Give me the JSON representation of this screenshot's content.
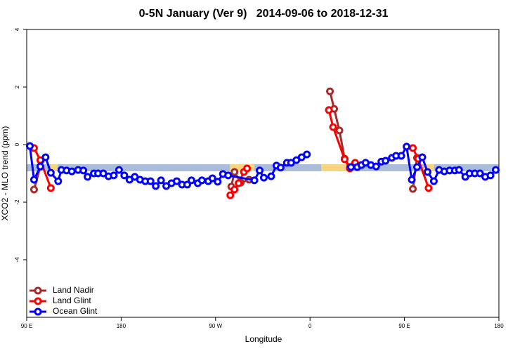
{
  "chart_data": {
    "type": "line",
    "title": "0-5N January (Ver 9)   2014-09-06 to 2018-12-31",
    "x_label": "Longitude",
    "y_label": "XCO2 - MLO trend (ppm)",
    "xlim": [
      90,
      540
    ],
    "ylim": [
      -6,
      4
    ],
    "xticks": [
      {
        "value": 90,
        "label": "90 E"
      },
      180,
      {
        "value": 270,
        "label": "90 W"
      },
      {
        "value": 360,
        "label": "0"
      },
      {
        "value": 450,
        "label": "90 E"
      },
      {
        "value": 540,
        "label": "180"
      }
    ],
    "yticks": [
      4,
      2,
      0,
      -2,
      -4
    ],
    "legend": "bottom-left",
    "series": [
      {
        "name": "Land Nadir",
        "color": "#a52a2a",
        "x": [
          97,
          103,
          null,
          285,
          288,
          294,
          302,
          null,
          379,
          383,
          388,
          393,
          398,
          null,
          458,
          462
        ],
        "values": [
          -1.56,
          -0.76,
          null,
          -1.46,
          -0.95,
          -1.32,
          -1.22,
          null,
          1.85,
          1.24,
          0.49,
          -0.49,
          -0.78,
          null,
          -1.54,
          -0.46
        ]
      },
      {
        "name": "Land Glint",
        "color": "#ff0000",
        "x": [
          97,
          103,
          113,
          null,
          284,
          288,
          292,
          297,
          300,
          null,
          378,
          382,
          393,
          398,
          403,
          null,
          458,
          463,
          473
        ],
        "values": [
          -0.12,
          -0.54,
          -1.51,
          null,
          -1.76,
          -1.56,
          -1.34,
          -0.95,
          -0.83,
          null,
          1.2,
          0.61,
          -0.51,
          -0.83,
          -0.63,
          null,
          -0.12,
          -0.49,
          -1.51
        ]
      },
      {
        "name": "Ocean Glint",
        "color": "#0000ff",
        "x": [
          93,
          97,
          103,
          108,
          113,
          120,
          123,
          128,
          133,
          139,
          144,
          148,
          154,
          158,
          163,
          168,
          173,
          178,
          183,
          188,
          193,
          198,
          203,
          208,
          213,
          218,
          223,
          228,
          233,
          238,
          243,
          247,
          253,
          257,
          263,
          267,
          272,
          277,
          282,
          307,
          312,
          316,
          323,
          328,
          332,
          338,
          342,
          347,
          352,
          357,
          null,
          399,
          405,
          409,
          413,
          418,
          423,
          428,
          432,
          438,
          442,
          447,
          452,
          457,
          462,
          467,
          472,
          478,
          483,
          488,
          493,
          498,
          502,
          508,
          512,
          517,
          522,
          527,
          532,
          537
        ],
        "values": [
          -0.05,
          -1.22,
          -0.76,
          -0.44,
          -0.98,
          -1.27,
          -0.88,
          -0.9,
          -0.93,
          -0.88,
          -0.9,
          -1.12,
          -1.0,
          -1.0,
          -1.0,
          -1.1,
          -1.07,
          -0.88,
          -1.07,
          -1.22,
          -1.12,
          -1.22,
          -1.27,
          -1.27,
          -1.44,
          -1.24,
          -1.44,
          -1.34,
          -1.27,
          -1.39,
          -1.39,
          -1.24,
          -1.34,
          -1.24,
          -1.27,
          -1.17,
          -1.29,
          -1.02,
          -1.07,
          -1.24,
          -0.9,
          -1.15,
          -1.1,
          -0.73,
          -0.8,
          -0.63,
          -0.63,
          -0.54,
          -0.44,
          -0.34,
          null,
          -0.78,
          -0.78,
          -0.71,
          -0.63,
          -0.71,
          -0.76,
          -0.59,
          -0.56,
          -0.46,
          -0.39,
          -0.39,
          -0.07,
          -1.22,
          -0.78,
          -0.44,
          -0.95,
          -1.27,
          -0.88,
          -0.93,
          -0.9,
          -0.9,
          -0.88,
          -1.12,
          -1.0,
          -1.0,
          -1.0,
          -1.12,
          -1.07,
          -0.88
        ]
      }
    ]
  }
}
